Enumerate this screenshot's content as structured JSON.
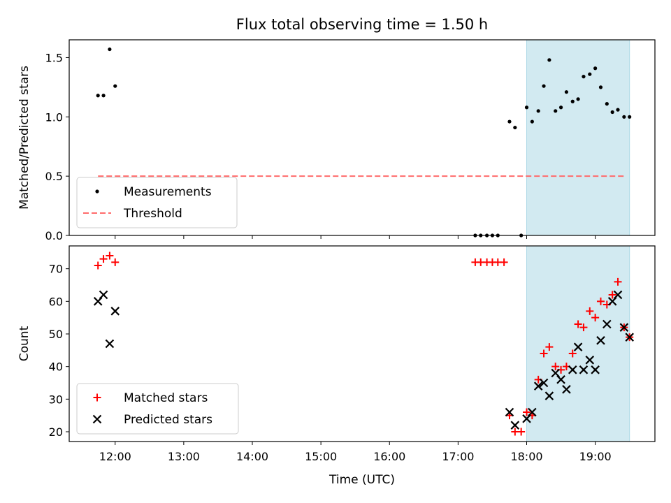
{
  "chart_data": {
    "title": "Flux total observing time = 1.50 h",
    "xlabel": "Time (UTC)",
    "x_unit": "hours UTC",
    "xlim": [
      11.33,
      19.87
    ],
    "xticks": [
      {
        "value": 12,
        "label": "12:00"
      },
      {
        "value": 13,
        "label": "13:00"
      },
      {
        "value": 14,
        "label": "14:00"
      },
      {
        "value": 15,
        "label": "15:00"
      },
      {
        "value": 16,
        "label": "16:00"
      },
      {
        "value": 17,
        "label": "17:00"
      },
      {
        "value": 18,
        "label": "18:00"
      },
      {
        "value": 19,
        "label": "19:00"
      }
    ],
    "highlight_span": {
      "x0": 18.0,
      "x1": 19.5,
      "color": "#add8e6"
    },
    "panels": [
      {
        "type": "scatter",
        "ylabel": "Matched/Predicted stars",
        "ylim": [
          0,
          1.65
        ],
        "yticks": [
          {
            "value": 0.0,
            "label": "0.0"
          },
          {
            "value": 0.5,
            "label": "0.5"
          },
          {
            "value": 1.0,
            "label": "1.0"
          },
          {
            "value": 1.5,
            "label": "1.5"
          }
        ],
        "legend_position": "lower-left",
        "series": [
          {
            "name": "Measurements",
            "marker": "dot",
            "color": "#000000",
            "points": [
              [
                11.75,
                1.18
              ],
              [
                11.83,
                1.18
              ],
              [
                11.92,
                1.57
              ],
              [
                12.0,
                1.26
              ],
              [
                17.25,
                0.0
              ],
              [
                17.33,
                0.0
              ],
              [
                17.42,
                0.0
              ],
              [
                17.5,
                0.0
              ],
              [
                17.58,
                0.0
              ],
              [
                17.92,
                0.0
              ],
              [
                17.75,
                0.96
              ],
              [
                17.83,
                0.91
              ],
              [
                18.0,
                1.08
              ],
              [
                18.08,
                0.96
              ],
              [
                18.17,
                1.05
              ],
              [
                18.25,
                1.26
              ],
              [
                18.33,
                1.48
              ],
              [
                18.42,
                1.05
              ],
              [
                18.5,
                1.08
              ],
              [
                18.58,
                1.21
              ],
              [
                18.67,
                1.13
              ],
              [
                18.75,
                1.15
              ],
              [
                18.83,
                1.34
              ],
              [
                18.92,
                1.36
              ],
              [
                19.0,
                1.41
              ],
              [
                19.08,
                1.25
              ],
              [
                19.17,
                1.11
              ],
              [
                19.25,
                1.04
              ],
              [
                19.33,
                1.06
              ],
              [
                19.42,
                1.0
              ],
              [
                19.5,
                1.0
              ]
            ]
          },
          {
            "name": "Threshold",
            "type": "line",
            "style": "dashed",
            "color": "#ff6b6b",
            "points": [
              [
                11.75,
                0.5
              ],
              [
                19.45,
                0.5
              ]
            ]
          }
        ]
      },
      {
        "type": "scatter",
        "ylabel": "Count",
        "ylim": [
          17,
          77
        ],
        "yticks": [
          {
            "value": 20,
            "label": "20"
          },
          {
            "value": 30,
            "label": "30"
          },
          {
            "value": 40,
            "label": "40"
          },
          {
            "value": 50,
            "label": "50"
          },
          {
            "value": 60,
            "label": "60"
          },
          {
            "value": 70,
            "label": "70"
          }
        ],
        "legend_position": "lower-left",
        "series": [
          {
            "name": "Matched stars",
            "marker": "plus",
            "color": "#ff0000",
            "points": [
              [
                11.75,
                71
              ],
              [
                11.83,
                73
              ],
              [
                11.92,
                74
              ],
              [
                12.0,
                72
              ],
              [
                17.25,
                72
              ],
              [
                17.33,
                72
              ],
              [
                17.42,
                72
              ],
              [
                17.5,
                72
              ],
              [
                17.58,
                72
              ],
              [
                17.67,
                72
              ],
              [
                17.75,
                25
              ],
              [
                17.83,
                20
              ],
              [
                17.92,
                20
              ],
              [
                18.0,
                26
              ],
              [
                18.08,
                25
              ],
              [
                18.17,
                36
              ],
              [
                18.25,
                44
              ],
              [
                18.33,
                46
              ],
              [
                18.42,
                40
              ],
              [
                18.5,
                39
              ],
              [
                18.58,
                40
              ],
              [
                18.67,
                44
              ],
              [
                18.75,
                53
              ],
              [
                18.83,
                52
              ],
              [
                18.92,
                57
              ],
              [
                19.0,
                55
              ],
              [
                19.08,
                60
              ],
              [
                19.17,
                59
              ],
              [
                19.25,
                62
              ],
              [
                19.33,
                66
              ],
              [
                19.42,
                52
              ],
              [
                19.5,
                49
              ]
            ]
          },
          {
            "name": "Predicted stars",
            "marker": "x",
            "color": "#000000",
            "points": [
              [
                11.75,
                60
              ],
              [
                11.83,
                62
              ],
              [
                11.92,
                47
              ],
              [
                12.0,
                57
              ],
              [
                17.75,
                26
              ],
              [
                17.83,
                22
              ],
              [
                18.0,
                24
              ],
              [
                18.08,
                26
              ],
              [
                18.17,
                34
              ],
              [
                18.25,
                35
              ],
              [
                18.33,
                31
              ],
              [
                18.42,
                38
              ],
              [
                18.5,
                36
              ],
              [
                18.58,
                33
              ],
              [
                18.67,
                39
              ],
              [
                18.75,
                46
              ],
              [
                18.83,
                39
              ],
              [
                18.92,
                42
              ],
              [
                19.0,
                39
              ],
              [
                19.08,
                48
              ],
              [
                19.17,
                53
              ],
              [
                19.25,
                60
              ],
              [
                19.33,
                62
              ],
              [
                19.42,
                52
              ],
              [
                19.5,
                49
              ]
            ]
          }
        ]
      }
    ]
  }
}
